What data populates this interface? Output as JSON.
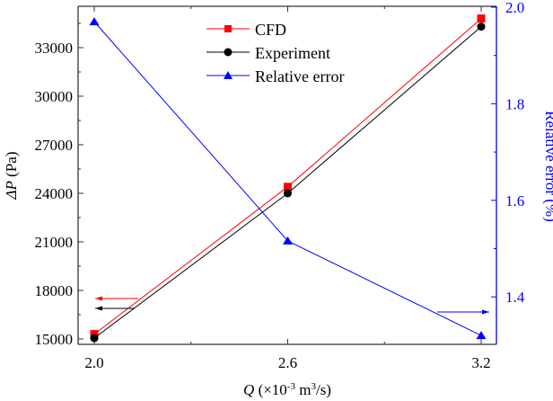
{
  "chart_data": {
    "type": "line",
    "title": "",
    "xlabel": {
      "var": "Q",
      "rest": " (×10",
      "sup1": "-3",
      "mid": " m",
      "sup2": "3",
      "end": "/s)"
    },
    "ylabel_left": {
      "var": "ΔP",
      "rest": " (Pa)"
    },
    "ylabel_right": "Relative error (%)",
    "x": [
      2.0,
      2.6,
      3.2
    ],
    "x_ticks": [
      "2.0",
      "2.6",
      "3.2"
    ],
    "xlim": [
      1.96,
      3.28
    ],
    "ylim_left": [
      14650,
      35500
    ],
    "ylim_right": [
      1.3,
      2.0
    ],
    "y_ticks_left": [
      "15000",
      "18000",
      "21000",
      "24000",
      "27000",
      "30000",
      "33000"
    ],
    "y_ticks_right": [
      "1.4",
      "1.6",
      "1.8",
      "2.0"
    ],
    "legend_position": "top-center",
    "grid": false,
    "series": [
      {
        "name": "CFD",
        "axis": "left",
        "marker": "square",
        "color": "#ff0000",
        "values": [
          15300,
          24400,
          34800
        ]
      },
      {
        "name": "Experiment",
        "axis": "left",
        "marker": "circle",
        "color": "#000000",
        "values": [
          15050,
          24000,
          34300
        ]
      },
      {
        "name": "Relative error",
        "axis": "right",
        "marker": "triangle",
        "color": "#0000ff",
        "values": [
          1.97,
          1.516,
          1.32
        ]
      }
    ],
    "right_axis_color": "#0000ff"
  }
}
